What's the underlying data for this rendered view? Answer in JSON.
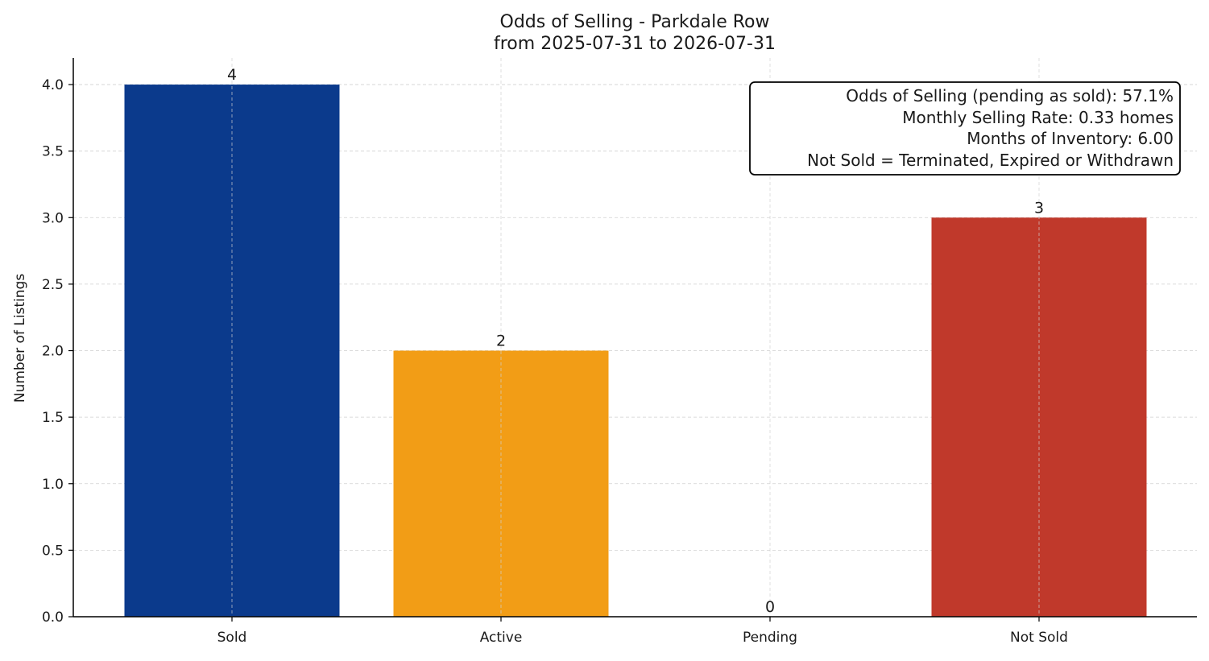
{
  "chart_data": {
    "type": "bar",
    "title": "Odds of Selling - Parkdale Row",
    "subtitle": "from 2025-07-31 to 2026-07-31",
    "xlabel": "",
    "ylabel": "Number of Listings",
    "categories": [
      "Sold",
      "Active",
      "Pending",
      "Not Sold"
    ],
    "values": [
      4,
      2,
      0,
      3
    ],
    "data_labels": [
      "4",
      "2",
      "0",
      "3"
    ],
    "colors": [
      "#0b3a8c",
      "#f29d16",
      "#2ca02c",
      "#c0392b"
    ],
    "ylim": [
      0,
      4.2
    ],
    "yticks": [
      0.0,
      0.5,
      1.0,
      1.5,
      2.0,
      2.5,
      3.0,
      3.5,
      4.0
    ],
    "ytick_labels": [
      "0.0",
      "0.5",
      "1.0",
      "1.5",
      "2.0",
      "2.5",
      "3.0",
      "3.5",
      "4.0"
    ],
    "grid": true,
    "annotation": {
      "placement": "top-right",
      "lines": [
        "Odds of Selling (pending as sold): 57.1%",
        "Monthly Selling Rate: 0.33 homes",
        "Months of Inventory: 6.00",
        "Not Sold = Terminated, Expired or Withdrawn"
      ]
    }
  }
}
